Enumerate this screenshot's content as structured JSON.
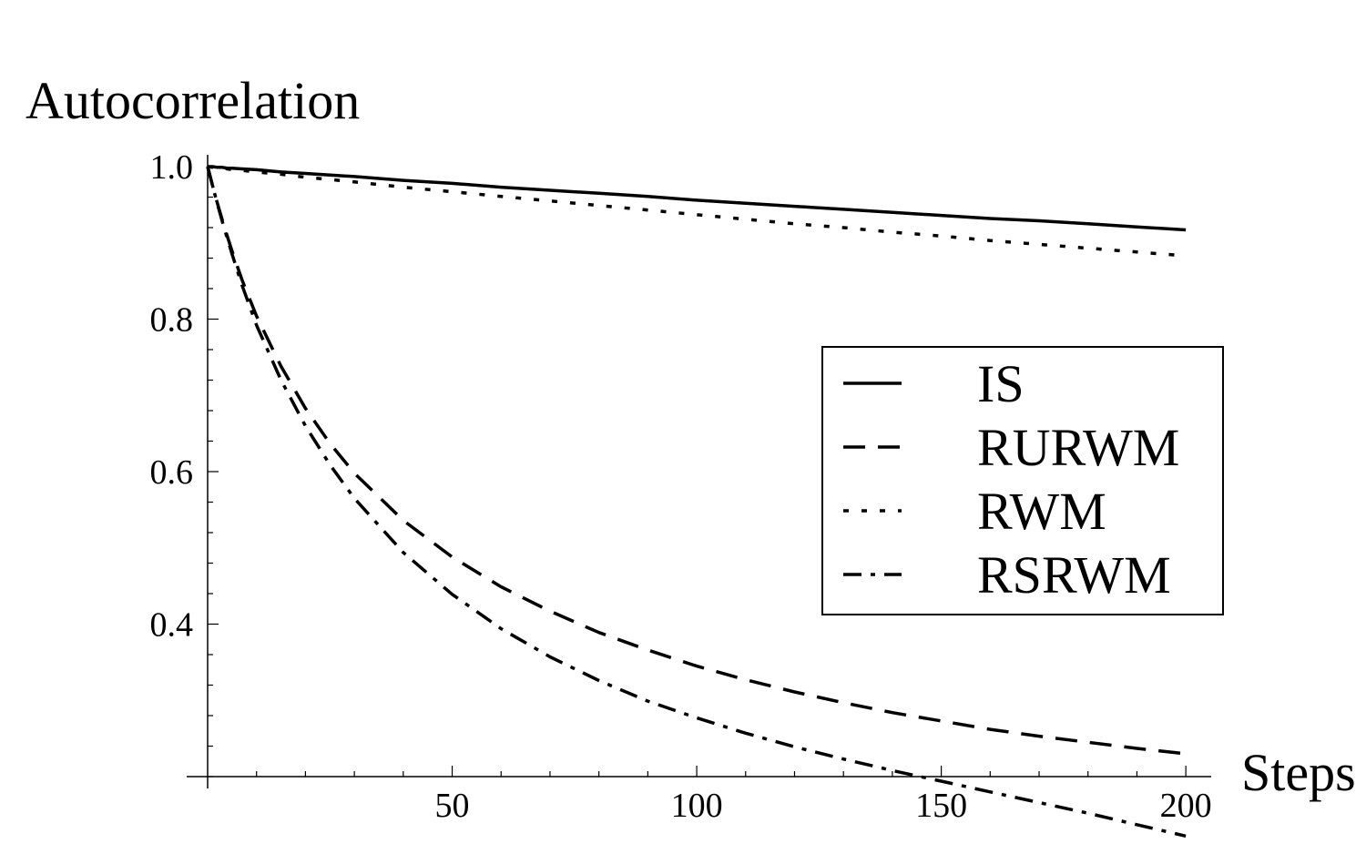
{
  "chart_data": {
    "type": "line",
    "xlabel": "Steps",
    "ylabel": "Autocorrelation",
    "xlim": [
      0,
      205
    ],
    "ylim": [
      0.2,
      1.0
    ],
    "x_ticks": [
      50,
      100,
      150,
      200
    ],
    "x_tick_labels": [
      "50",
      "100",
      "150",
      "200"
    ],
    "y_ticks": [
      0.4,
      0.6,
      0.8,
      1.0
    ],
    "y_tick_labels": [
      "0.4",
      "0.6",
      "0.8",
      "1.0"
    ],
    "grid": false,
    "legend_position": "right",
    "x": [
      0,
      1,
      2,
      3,
      4,
      5,
      7,
      10,
      15,
      20,
      25,
      30,
      40,
      50,
      60,
      70,
      80,
      90,
      100,
      110,
      120,
      130,
      140,
      150,
      160,
      170,
      180,
      190,
      200
    ],
    "series": [
      {
        "name": "IS",
        "style": "solid",
        "values": [
          1.0,
          1.0,
          0.999,
          0.999,
          0.998,
          0.998,
          0.997,
          0.996,
          0.993,
          0.991,
          0.989,
          0.987,
          0.982,
          0.978,
          0.973,
          0.969,
          0.965,
          0.961,
          0.956,
          0.952,
          0.948,
          0.944,
          0.94,
          0.936,
          0.932,
          0.929,
          0.925,
          0.921,
          0.917
        ]
      },
      {
        "name": "RURWM",
        "style": "dashed",
        "values": [
          1.0,
          0.975,
          0.952,
          0.93,
          0.909,
          0.889,
          0.852,
          0.804,
          0.738,
          0.683,
          0.637,
          0.598,
          0.536,
          0.488,
          0.449,
          0.417,
          0.389,
          0.366,
          0.345,
          0.327,
          0.311,
          0.297,
          0.284,
          0.273,
          0.262,
          0.253,
          0.245,
          0.237,
          0.23
        ]
      },
      {
        "name": "RWM",
        "style": "dotted",
        "values": [
          1.0,
          0.999,
          0.999,
          0.998,
          0.997,
          0.996,
          0.995,
          0.993,
          0.99,
          0.986,
          0.983,
          0.98,
          0.973,
          0.967,
          0.961,
          0.955,
          0.949,
          0.943,
          0.937,
          0.931,
          0.925,
          0.92,
          0.914,
          0.909,
          0.903,
          0.898,
          0.893,
          0.888,
          0.883
        ]
      },
      {
        "name": "RSRWM",
        "style": "dashdot",
        "values": [
          1.0,
          0.975,
          0.951,
          0.928,
          0.906,
          0.885,
          0.845,
          0.792,
          0.72,
          0.66,
          0.609,
          0.565,
          0.494,
          0.439,
          0.394,
          0.357,
          0.326,
          0.299,
          0.277,
          0.257,
          0.239,
          0.223,
          0.208,
          0.194,
          0.18,
          0.166,
          0.152,
          0.137,
          0.122
        ]
      }
    ]
  }
}
